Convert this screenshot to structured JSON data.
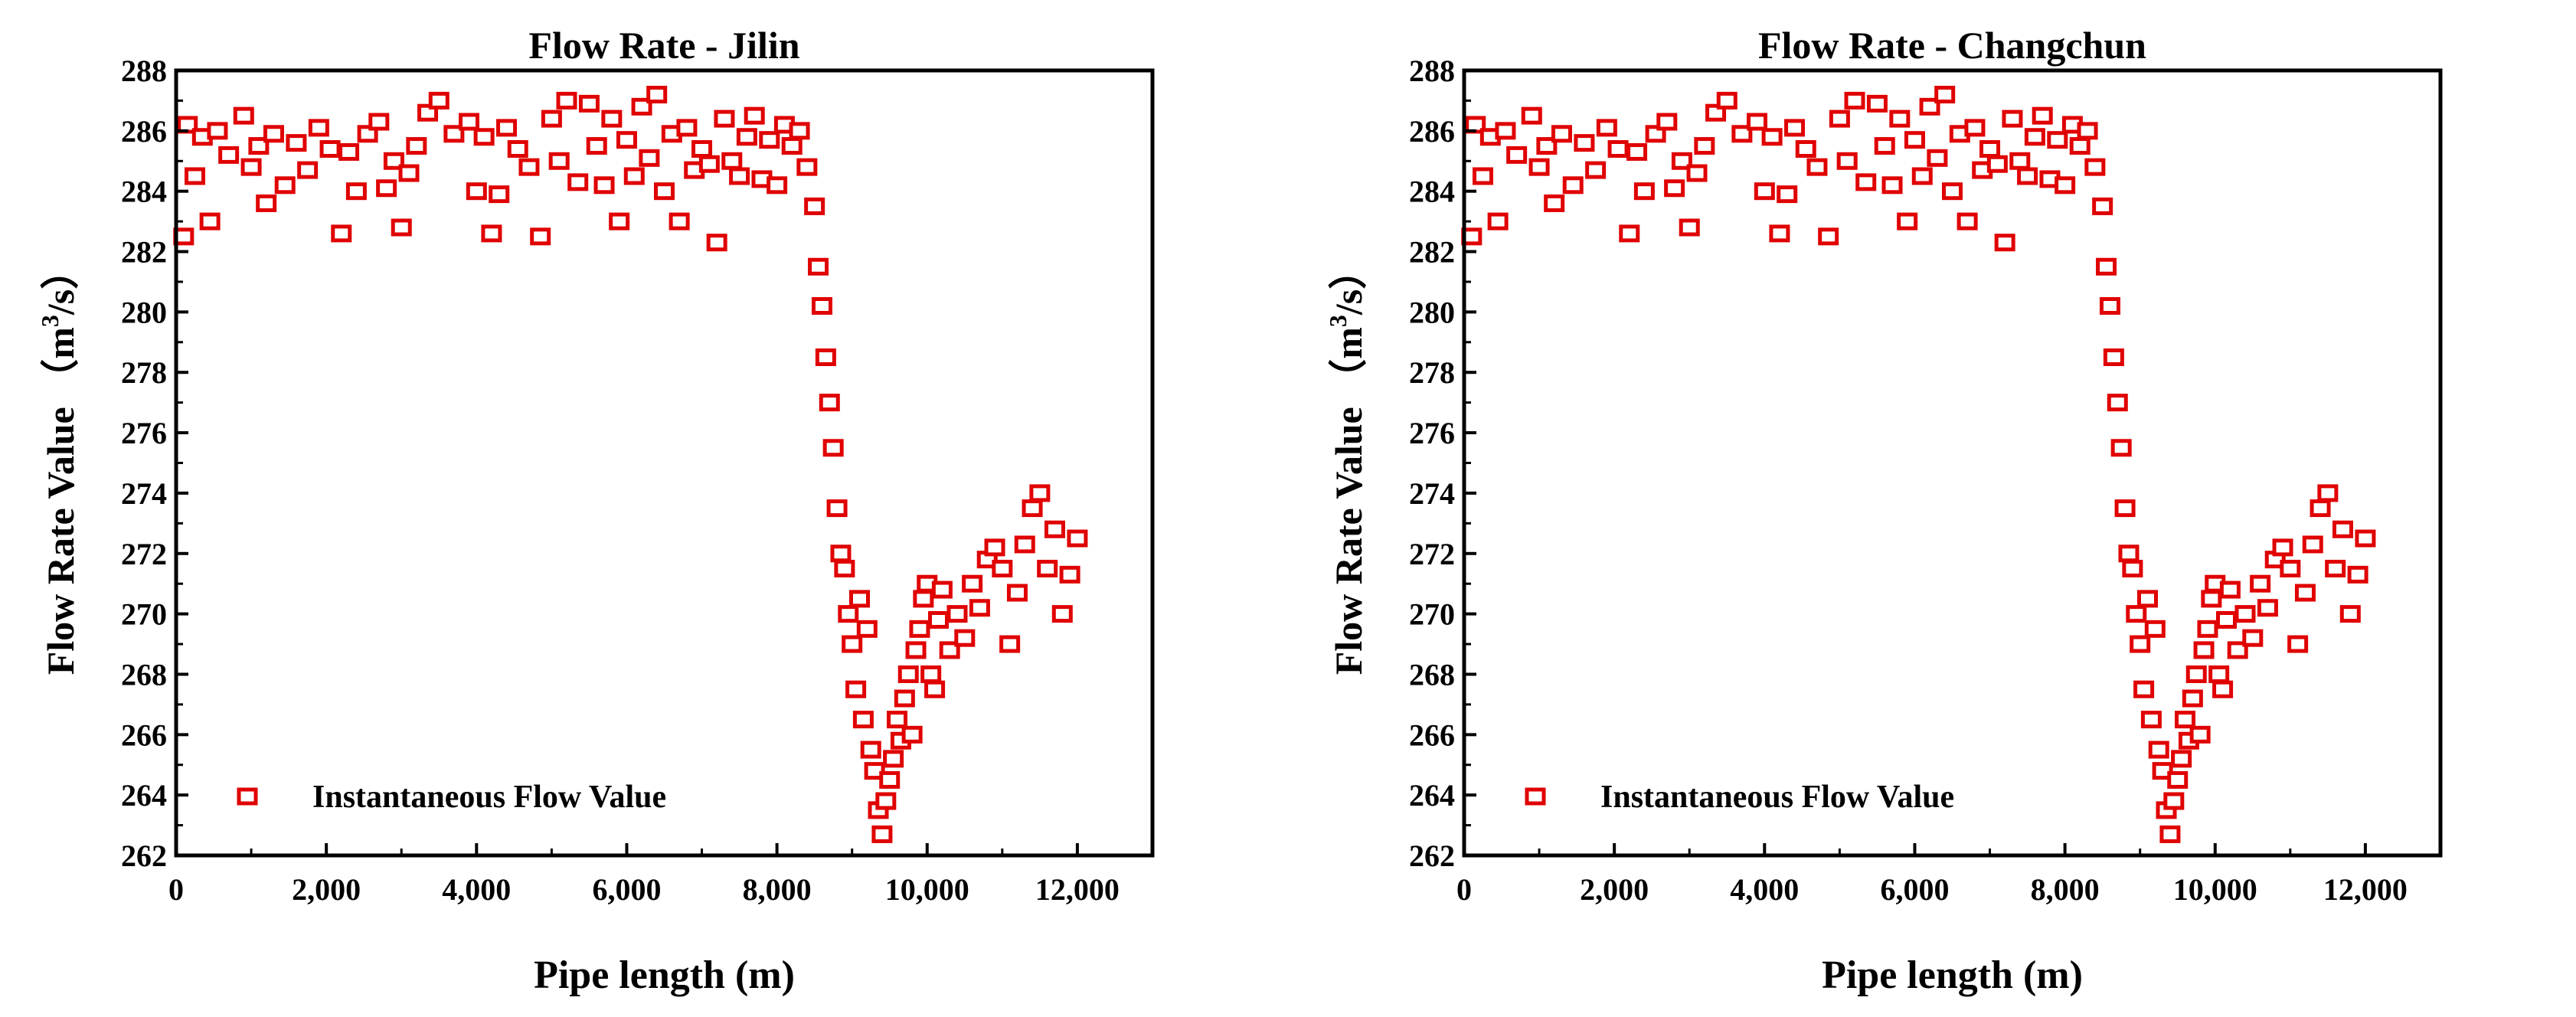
{
  "chart_data": [
    {
      "type": "scatter",
      "title": "Flow Rate - Jilin",
      "ylabel_main": "Flow Rate Value",
      "ylabel_open": "（m",
      "ylabel_sup": "3",
      "ylabel_close": "/s）",
      "xlabel": "Pipe length (m)",
      "xlim": [
        0,
        13000
      ],
      "ylim": [
        262,
        288
      ],
      "xticks": [
        0,
        2000,
        4000,
        6000,
        8000,
        10000,
        12000
      ],
      "xtick_labels": [
        "0",
        "2,000",
        "4,000",
        "6,000",
        "8,000",
        "10,000",
        "12,000"
      ],
      "yticks": [
        262,
        264,
        266,
        268,
        270,
        272,
        274,
        276,
        278,
        280,
        282,
        284,
        286,
        288
      ],
      "ytick_labels": [
        "262",
        "264",
        "266",
        "268",
        "270",
        "272",
        "274",
        "276",
        "278",
        "280",
        "282",
        "284",
        "286",
        "288"
      ],
      "legend": "Instantaneous Flow Value",
      "marker_color": "#e00000",
      "series": [
        {
          "name": "Instantaneous Flow Value",
          "x": [
            100,
            150,
            250,
            350,
            450,
            550,
            700,
            900,
            1000,
            1100,
            1200,
            1300,
            1450,
            1600,
            1750,
            1900,
            2050,
            2200,
            2300,
            2400,
            2550,
            2700,
            2800,
            2900,
            3000,
            3100,
            3200,
            3350,
            3500,
            3700,
            3900,
            4000,
            4100,
            4200,
            4300,
            4400,
            4550,
            4700,
            4850,
            5000,
            5100,
            5200,
            5350,
            5500,
            5600,
            5700,
            5800,
            5900,
            6000,
            6100,
            6200,
            6300,
            6400,
            6500,
            6600,
            6700,
            6800,
            6900,
            7000,
            7100,
            7200,
            7300,
            7400,
            7500,
            7600,
            7700,
            7800,
            7900,
            8000,
            8100,
            8200,
            8300,
            8400,
            8500,
            8550,
            8600,
            8650,
            8700,
            8750,
            8800,
            8850,
            8900,
            8950,
            9000,
            9050,
            9100,
            9150,
            9200,
            9250,
            9300,
            9350,
            9400,
            9450,
            9500,
            9550,
            9600,
            9650,
            9700,
            9750,
            9800,
            9850,
            9900,
            9950,
            10000,
            10050,
            10100,
            10150,
            10200,
            10300,
            10400,
            10500,
            10600,
            10700,
            10800,
            10900,
            11000,
            11100,
            11200,
            11300,
            11400,
            11500,
            11600,
            11700,
            11800,
            11900,
            12000
          ],
          "y": [
            282.5,
            286.2,
            284.5,
            285.8,
            283.0,
            286.0,
            285.2,
            286.5,
            284.8,
            285.5,
            283.6,
            285.9,
            284.2,
            285.6,
            284.7,
            286.1,
            285.4,
            282.6,
            285.3,
            284.0,
            285.9,
            286.3,
            284.1,
            285.0,
            282.8,
            284.6,
            285.5,
            286.6,
            287.0,
            285.9,
            286.3,
            284.0,
            285.8,
            282.6,
            283.9,
            286.1,
            285.4,
            284.8,
            282.5,
            286.4,
            285.0,
            287.0,
            284.3,
            286.9,
            285.5,
            284.2,
            286.4,
            283.0,
            285.7,
            284.5,
            286.8,
            285.1,
            287.2,
            284.0,
            285.9,
            283.0,
            286.1,
            284.7,
            285.4,
            284.9,
            282.3,
            286.4,
            285.0,
            284.5,
            285.8,
            286.5,
            284.4,
            285.7,
            284.2,
            286.2,
            285.5,
            286.0,
            284.8,
            283.5,
            281.5,
            280.2,
            278.5,
            277.0,
            275.5,
            273.5,
            272.0,
            271.5,
            270.0,
            269.0,
            267.5,
            270.5,
            266.5,
            269.5,
            265.5,
            264.8,
            263.5,
            262.7,
            263.8,
            264.5,
            265.2,
            266.5,
            265.8,
            267.2,
            268.0,
            266.0,
            268.8,
            269.5,
            270.5,
            271.0,
            268.0,
            267.5,
            269.8,
            270.8,
            268.8,
            270.0,
            269.2,
            271.0,
            270.2,
            271.8,
            272.2,
            271.5,
            269.0,
            270.7,
            272.3,
            273.5,
            274.0,
            271.5,
            272.8,
            270.0,
            271.3,
            272.5
          ]
        }
      ]
    },
    {
      "type": "scatter",
      "title": "Flow Rate - Changchun",
      "ylabel_main": "Flow Rate Value",
      "ylabel_open": "（m",
      "ylabel_sup": "3",
      "ylabel_close": "/s）",
      "xlabel": "Pipe length (m)",
      "xlim": [
        0,
        13000
      ],
      "ylim": [
        262,
        288
      ],
      "xticks": [
        0,
        2000,
        4000,
        6000,
        8000,
        10000,
        12000
      ],
      "xtick_labels": [
        "0",
        "2,000",
        "4,000",
        "6,000",
        "8,000",
        "10,000",
        "12,000"
      ],
      "yticks": [
        262,
        264,
        266,
        268,
        270,
        272,
        274,
        276,
        278,
        280,
        282,
        284,
        286,
        288
      ],
      "ytick_labels": [
        "262",
        "264",
        "266",
        "268",
        "270",
        "272",
        "274",
        "276",
        "278",
        "280",
        "282",
        "284",
        "286",
        "288"
      ],
      "legend": "Instantaneous Flow Value",
      "marker_color": "#e00000",
      "series": [
        {
          "name": "Instantaneous Flow Value",
          "x": [
            100,
            150,
            250,
            350,
            450,
            550,
            700,
            900,
            1000,
            1100,
            1200,
            1300,
            1450,
            1600,
            1750,
            1900,
            2050,
            2200,
            2300,
            2400,
            2550,
            2700,
            2800,
            2900,
            3000,
            3100,
            3200,
            3350,
            3500,
            3700,
            3900,
            4000,
            4100,
            4200,
            4300,
            4400,
            4550,
            4700,
            4850,
            5000,
            5100,
            5200,
            5350,
            5500,
            5600,
            5700,
            5800,
            5900,
            6000,
            6100,
            6200,
            6300,
            6400,
            6500,
            6600,
            6700,
            6800,
            6900,
            7000,
            7100,
            7200,
            7300,
            7400,
            7500,
            7600,
            7700,
            7800,
            7900,
            8000,
            8100,
            8200,
            8300,
            8400,
            8500,
            8550,
            8600,
            8650,
            8700,
            8750,
            8800,
            8850,
            8900,
            8950,
            9000,
            9050,
            9100,
            9150,
            9200,
            9250,
            9300,
            9350,
            9400,
            9450,
            9500,
            9550,
            9600,
            9650,
            9700,
            9750,
            9800,
            9850,
            9900,
            9950,
            10000,
            10050,
            10100,
            10150,
            10200,
            10300,
            10400,
            10500,
            10600,
            10700,
            10800,
            10900,
            11000,
            11100,
            11200,
            11300,
            11400,
            11500,
            11600,
            11700,
            11800,
            11900,
            12000
          ],
          "y": [
            282.5,
            286.2,
            284.5,
            285.8,
            283.0,
            286.0,
            285.2,
            286.5,
            284.8,
            285.5,
            283.6,
            285.9,
            284.2,
            285.6,
            284.7,
            286.1,
            285.4,
            282.6,
            285.3,
            284.0,
            285.9,
            286.3,
            284.1,
            285.0,
            282.8,
            284.6,
            285.5,
            286.6,
            287.0,
            285.9,
            286.3,
            284.0,
            285.8,
            282.6,
            283.9,
            286.1,
            285.4,
            284.8,
            282.5,
            286.4,
            285.0,
            287.0,
            284.3,
            286.9,
            285.5,
            284.2,
            286.4,
            283.0,
            285.7,
            284.5,
            286.8,
            285.1,
            287.2,
            284.0,
            285.9,
            283.0,
            286.1,
            284.7,
            285.4,
            284.9,
            282.3,
            286.4,
            285.0,
            284.5,
            285.8,
            286.5,
            284.4,
            285.7,
            284.2,
            286.2,
            285.5,
            286.0,
            284.8,
            283.5,
            281.5,
            280.2,
            278.5,
            277.0,
            275.5,
            273.5,
            272.0,
            271.5,
            270.0,
            269.0,
            267.5,
            270.5,
            266.5,
            269.5,
            265.5,
            264.8,
            263.5,
            262.7,
            263.8,
            264.5,
            265.2,
            266.5,
            265.8,
            267.2,
            268.0,
            266.0,
            268.8,
            269.5,
            270.5,
            271.0,
            268.0,
            267.5,
            269.8,
            270.8,
            268.8,
            270.0,
            269.2,
            271.0,
            270.2,
            271.8,
            272.2,
            271.5,
            269.0,
            270.7,
            272.3,
            273.5,
            274.0,
            271.5,
            272.8,
            270.0,
            271.3,
            272.5
          ]
        }
      ]
    }
  ]
}
